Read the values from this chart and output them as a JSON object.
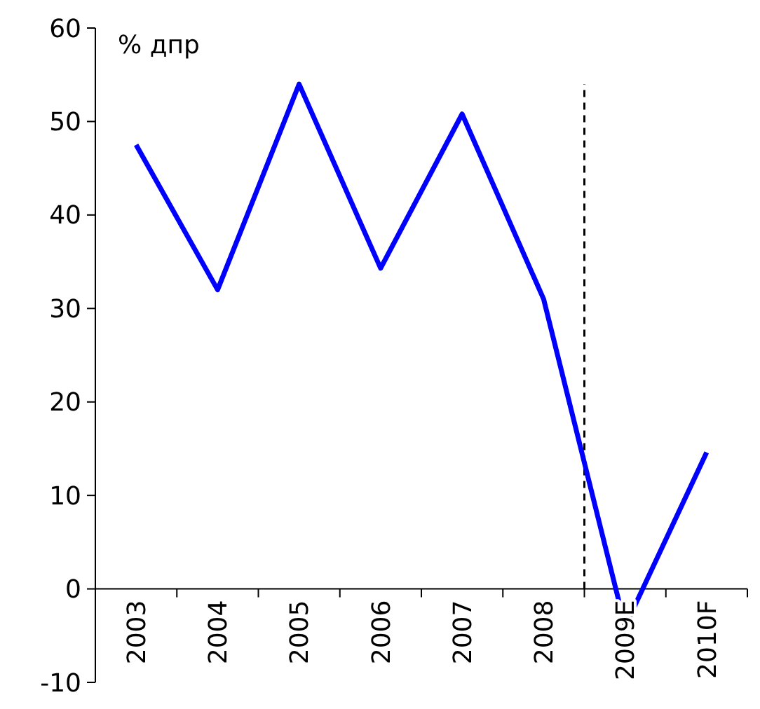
{
  "chart_data": {
    "type": "line",
    "ylabel": "% дпр",
    "categories": [
      "2003",
      "2004",
      "2005",
      "2006",
      "2007",
      "2008",
      "2009E",
      "2010F"
    ],
    "series": [
      {
        "color": "#0000ff",
        "values": [
          47.5,
          32,
          54,
          34.3,
          50.8,
          31,
          -4,
          14.6
        ]
      }
    ],
    "ylim": [
      -10,
      60
    ],
    "yticks": [
      -10,
      0,
      10,
      20,
      30,
      40,
      50,
      60
    ],
    "grid": false,
    "line_style": "solid"
  }
}
